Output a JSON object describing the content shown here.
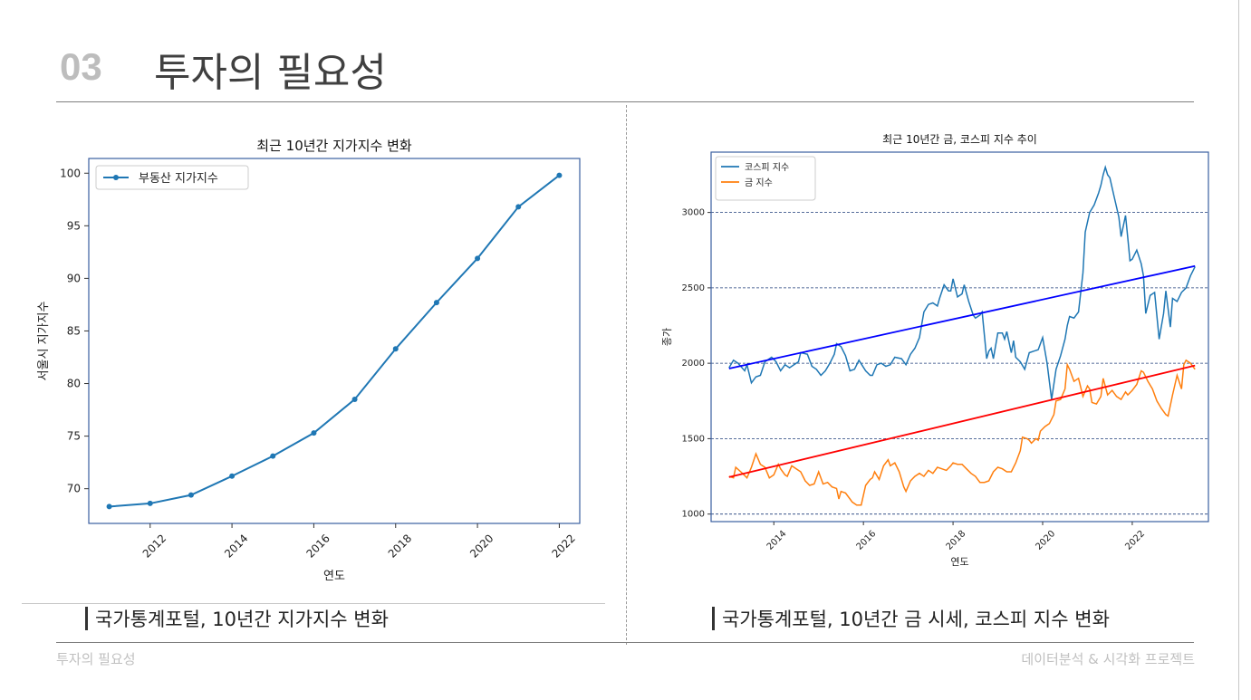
{
  "header": {
    "number": "03",
    "title": "투자의 필요성"
  },
  "captions": {
    "left": "국가통계포털, 10년간 지가지수 변화",
    "right": "국가통계포털, 10년간 금 시세, 코스피 지수 변화"
  },
  "footer": {
    "left": "투자의 필요성",
    "right": "데이터분석 & 시각화 프로젝트"
  },
  "chart_data": [
    {
      "type": "line",
      "title": "최근 10년간 지가지수 변화",
      "xlabel": "연도",
      "ylabel": "서울시 지가지수",
      "x": [
        2011,
        2012,
        2013,
        2014,
        2015,
        2016,
        2017,
        2018,
        2019,
        2020,
        2021,
        2022
      ],
      "series": [
        {
          "name": "부동산 지가지수",
          "values": [
            68.3,
            68.6,
            69.4,
            71.2,
            73.1,
            75.3,
            78.5,
            83.3,
            87.7,
            91.9,
            96.8,
            99.8
          ],
          "color": "#1f77b4"
        }
      ],
      "xticks": [
        2012,
        2014,
        2016,
        2018,
        2020,
        2022
      ],
      "yticks": [
        70,
        75,
        80,
        85,
        90,
        95,
        100
      ],
      "xlim": [
        2010.5,
        2022.5
      ],
      "ylim": [
        66.7,
        101.4
      ],
      "legend": "upper-left",
      "grid": false
    },
    {
      "type": "line",
      "title": "최근 10년간 금, 코스피 지수 추이",
      "xlabel": "연도",
      "ylabel": "종가",
      "xticks": [
        "2014",
        "2016",
        "2018",
        "2020",
        "2022"
      ],
      "xtick_values": [
        2014,
        2016,
        2018,
        2020,
        2022
      ],
      "yticks": [
        1000,
        1500,
        2000,
        2500,
        3000
      ],
      "xlim": [
        2012.6,
        2023.7
      ],
      "ylim": [
        950,
        3400
      ],
      "grid": "horizontal-dashed",
      "legend": "upper-left",
      "series": [
        {
          "name": "코스피 지수",
          "color": "#1f77b4",
          "points": [
            [
              2013.0,
              1970
            ],
            [
              2013.1,
              2020
            ],
            [
              2013.2,
              2000
            ],
            [
              2013.35,
              1950
            ],
            [
              2013.4,
              1990
            ],
            [
              2013.5,
              1870
            ],
            [
              2013.6,
              1910
            ],
            [
              2013.7,
              1920
            ],
            [
              2013.8,
              2010
            ],
            [
              2013.95,
              2040
            ],
            [
              2014.05,
              2010
            ],
            [
              2014.15,
              1950
            ],
            [
              2014.25,
              1990
            ],
            [
              2014.35,
              1970
            ],
            [
              2014.45,
              1990
            ],
            [
              2014.55,
              2010
            ],
            [
              2014.6,
              2070
            ],
            [
              2014.75,
              2060
            ],
            [
              2014.85,
              1980
            ],
            [
              2014.95,
              1960
            ],
            [
              2015.05,
              1920
            ],
            [
              2015.15,
              1950
            ],
            [
              2015.25,
              2000
            ],
            [
              2015.35,
              2060
            ],
            [
              2015.4,
              2130
            ],
            [
              2015.5,
              2110
            ],
            [
              2015.6,
              2050
            ],
            [
              2015.7,
              1950
            ],
            [
              2015.8,
              1960
            ],
            [
              2015.9,
              2020
            ],
            [
              2016.05,
              1950
            ],
            [
              2016.15,
              1920
            ],
            [
              2016.2,
              1920
            ],
            [
              2016.3,
              1990
            ],
            [
              2016.4,
              2000
            ],
            [
              2016.5,
              1980
            ],
            [
              2016.6,
              1990
            ],
            [
              2016.7,
              2040
            ],
            [
              2016.85,
              2030
            ],
            [
              2016.95,
              1990
            ],
            [
              2017.05,
              2060
            ],
            [
              2017.15,
              2100
            ],
            [
              2017.25,
              2170
            ],
            [
              2017.35,
              2340
            ],
            [
              2017.45,
              2390
            ],
            [
              2017.55,
              2400
            ],
            [
              2017.65,
              2380
            ],
            [
              2017.7,
              2430
            ],
            [
              2017.8,
              2520
            ],
            [
              2017.9,
              2480
            ],
            [
              2017.95,
              2480
            ],
            [
              2018.0,
              2560
            ],
            [
              2018.1,
              2440
            ],
            [
              2018.2,
              2460
            ],
            [
              2018.25,
              2520
            ],
            [
              2018.35,
              2410
            ],
            [
              2018.45,
              2320
            ],
            [
              2018.5,
              2300
            ],
            [
              2018.6,
              2320
            ],
            [
              2018.65,
              2340
            ],
            [
              2018.75,
              2030
            ],
            [
              2018.8,
              2080
            ],
            [
              2018.85,
              2100
            ],
            [
              2018.9,
              2030
            ],
            [
              2019.0,
              2200
            ],
            [
              2019.1,
              2200
            ],
            [
              2019.15,
              2160
            ],
            [
              2019.2,
              2210
            ],
            [
              2019.3,
              2070
            ],
            [
              2019.35,
              2150
            ],
            [
              2019.4,
              2040
            ],
            [
              2019.5,
              2010
            ],
            [
              2019.6,
              1960
            ],
            [
              2019.7,
              2070
            ],
            [
              2019.8,
              2080
            ],
            [
              2019.9,
              2090
            ],
            [
              2020.0,
              2170
            ],
            [
              2020.1,
              2000
            ],
            [
              2020.2,
              1760
            ],
            [
              2020.3,
              1960
            ],
            [
              2020.4,
              2050
            ],
            [
              2020.5,
              2160
            ],
            [
              2020.55,
              2250
            ],
            [
              2020.6,
              2310
            ],
            [
              2020.7,
              2300
            ],
            [
              2020.8,
              2340
            ],
            [
              2020.9,
              2600
            ],
            [
              2020.95,
              2870
            ],
            [
              2021.05,
              3000
            ],
            [
              2021.15,
              3050
            ],
            [
              2021.25,
              3130
            ],
            [
              2021.3,
              3180
            ],
            [
              2021.35,
              3250
            ],
            [
              2021.4,
              3300
            ],
            [
              2021.45,
              3250
            ],
            [
              2021.5,
              3230
            ],
            [
              2021.6,
              3100
            ],
            [
              2021.7,
              2970
            ],
            [
              2021.75,
              2840
            ],
            [
              2021.85,
              2980
            ],
            [
              2021.9,
              2830
            ],
            [
              2021.95,
              2680
            ],
            [
              2022.0,
              2690
            ],
            [
              2022.1,
              2750
            ],
            [
              2022.2,
              2660
            ],
            [
              2022.25,
              2580
            ],
            [
              2022.3,
              2330
            ],
            [
              2022.4,
              2450
            ],
            [
              2022.5,
              2470
            ],
            [
              2022.6,
              2160
            ],
            [
              2022.7,
              2330
            ],
            [
              2022.75,
              2480
            ],
            [
              2022.85,
              2240
            ],
            [
              2022.9,
              2430
            ],
            [
              2023.0,
              2410
            ],
            [
              2023.1,
              2470
            ],
            [
              2023.2,
              2500
            ],
            [
              2023.3,
              2580
            ],
            [
              2023.4,
              2640
            ]
          ]
        },
        {
          "name": "금 지수",
          "color": "#ff7f0e",
          "points": [
            [
              2013.0,
              1250
            ],
            [
              2013.1,
              1240
            ],
            [
              2013.15,
              1310
            ],
            [
              2013.3,
              1270
            ],
            [
              2013.4,
              1240
            ],
            [
              2013.5,
              1310
            ],
            [
              2013.6,
              1400
            ],
            [
              2013.7,
              1330
            ],
            [
              2013.8,
              1310
            ],
            [
              2013.9,
              1240
            ],
            [
              2014.0,
              1260
            ],
            [
              2014.1,
              1330
            ],
            [
              2014.15,
              1300
            ],
            [
              2014.25,
              1260
            ],
            [
              2014.3,
              1250
            ],
            [
              2014.4,
              1320
            ],
            [
              2014.5,
              1300
            ],
            [
              2014.6,
              1280
            ],
            [
              2014.7,
              1220
            ],
            [
              2014.8,
              1190
            ],
            [
              2014.9,
              1200
            ],
            [
              2015.0,
              1280
            ],
            [
              2015.1,
              1200
            ],
            [
              2015.2,
              1210
            ],
            [
              2015.3,
              1180
            ],
            [
              2015.4,
              1170
            ],
            [
              2015.45,
              1100
            ],
            [
              2015.5,
              1150
            ],
            [
              2015.6,
              1140
            ],
            [
              2015.7,
              1100
            ],
            [
              2015.75,
              1080
            ],
            [
              2015.85,
              1060
            ],
            [
              2015.95,
              1060
            ],
            [
              2016.05,
              1190
            ],
            [
              2016.15,
              1230
            ],
            [
              2016.2,
              1240
            ],
            [
              2016.25,
              1280
            ],
            [
              2016.35,
              1230
            ],
            [
              2016.45,
              1320
            ],
            [
              2016.55,
              1360
            ],
            [
              2016.6,
              1320
            ],
            [
              2016.7,
              1340
            ],
            [
              2016.8,
              1280
            ],
            [
              2016.9,
              1180
            ],
            [
              2016.95,
              1150
            ],
            [
              2017.05,
              1220
            ],
            [
              2017.15,
              1250
            ],
            [
              2017.25,
              1270
            ],
            [
              2017.35,
              1250
            ],
            [
              2017.45,
              1290
            ],
            [
              2017.55,
              1270
            ],
            [
              2017.65,
              1310
            ],
            [
              2017.75,
              1300
            ],
            [
              2017.85,
              1290
            ],
            [
              2017.95,
              1320
            ],
            [
              2018.0,
              1340
            ],
            [
              2018.1,
              1330
            ],
            [
              2018.2,
              1330
            ],
            [
              2018.3,
              1300
            ],
            [
              2018.4,
              1270
            ],
            [
              2018.5,
              1250
            ],
            [
              2018.55,
              1230
            ],
            [
              2018.6,
              1210
            ],
            [
              2018.7,
              1210
            ],
            [
              2018.8,
              1220
            ],
            [
              2018.9,
              1280
            ],
            [
              2019.0,
              1310
            ],
            [
              2019.1,
              1300
            ],
            [
              2019.2,
              1280
            ],
            [
              2019.3,
              1280
            ],
            [
              2019.4,
              1340
            ],
            [
              2019.5,
              1420
            ],
            [
              2019.55,
              1510
            ],
            [
              2019.65,
              1500
            ],
            [
              2019.7,
              1490
            ],
            [
              2019.75,
              1470
            ],
            [
              2019.85,
              1500
            ],
            [
              2019.9,
              1490
            ],
            [
              2019.95,
              1550
            ],
            [
              2020.05,
              1580
            ],
            [
              2020.15,
              1600
            ],
            [
              2020.25,
              1660
            ],
            [
              2020.3,
              1750
            ],
            [
              2020.4,
              1760
            ],
            [
              2020.5,
              1830
            ],
            [
              2020.55,
              1990
            ],
            [
              2020.6,
              1960
            ],
            [
              2020.7,
              1880
            ],
            [
              2020.8,
              1900
            ],
            [
              2020.9,
              1780
            ],
            [
              2021.0,
              1850
            ],
            [
              2021.05,
              1830
            ],
            [
              2021.1,
              1740
            ],
            [
              2021.2,
              1730
            ],
            [
              2021.3,
              1780
            ],
            [
              2021.35,
              1900
            ],
            [
              2021.45,
              1790
            ],
            [
              2021.55,
              1820
            ],
            [
              2021.65,
              1780
            ],
            [
              2021.75,
              1760
            ],
            [
              2021.85,
              1810
            ],
            [
              2021.9,
              1790
            ],
            [
              2022.0,
              1820
            ],
            [
              2022.1,
              1860
            ],
            [
              2022.2,
              1950
            ],
            [
              2022.25,
              1940
            ],
            [
              2022.35,
              1880
            ],
            [
              2022.45,
              1830
            ],
            [
              2022.55,
              1750
            ],
            [
              2022.65,
              1700
            ],
            [
              2022.75,
              1660
            ],
            [
              2022.8,
              1650
            ],
            [
              2022.9,
              1790
            ],
            [
              2023.0,
              1920
            ],
            [
              2023.1,
              1830
            ],
            [
              2023.15,
              1990
            ],
            [
              2023.2,
              2020
            ],
            [
              2023.3,
              2000
            ],
            [
              2023.4,
              1960
            ]
          ]
        },
        {
          "name": "",
          "color": "#0000ff",
          "trend": true,
          "points": [
            [
              2013.0,
              1965
            ],
            [
              2023.4,
              2645
            ]
          ]
        },
        {
          "name": "",
          "color": "#ff0000",
          "trend": true,
          "points": [
            [
              2013.0,
              1245
            ],
            [
              2023.4,
              1985
            ]
          ]
        }
      ]
    }
  ]
}
